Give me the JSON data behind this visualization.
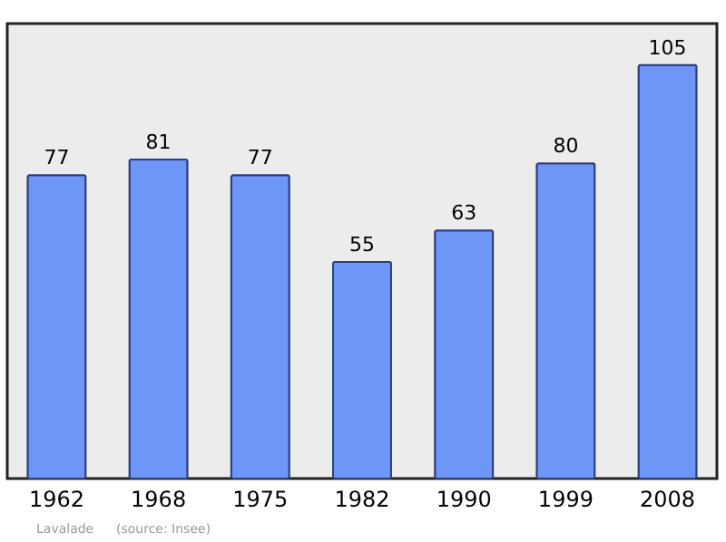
{
  "chart_data": {
    "type": "bar",
    "categories": [
      "1962",
      "1968",
      "1975",
      "1982",
      "1990",
      "1999",
      "2008"
    ],
    "values": [
      77,
      81,
      77,
      55,
      63,
      80,
      105
    ],
    "color": "#6d96f7",
    "data_labels": true,
    "tick_labels": "x",
    "annotations": [
      "Lavalade",
      "(source: Insee)"
    ]
  }
}
